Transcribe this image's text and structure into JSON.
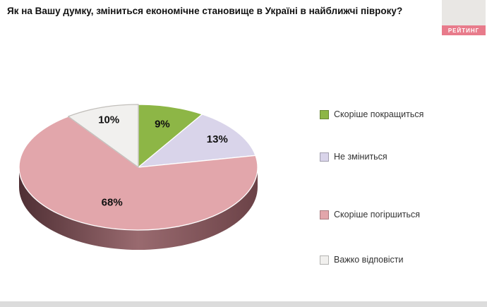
{
  "header": {
    "title": "Як на Вашу думку, зміниться економічне становище в Україні в найближчі півроку?",
    "logo_text": "РЕЙТИНГ"
  },
  "chart_data": {
    "type": "pie",
    "style": "3d",
    "title": "Як на Вашу думку, зміниться економічне становище в Україні в найближчі півроку?",
    "labels": [
      "Скоріше покращиться",
      "Не зміниться",
      "Скоріше погіршиться",
      "Важко відповісти"
    ],
    "values": [
      9,
      13,
      68,
      10
    ],
    "value_labels": [
      "9%",
      "13%",
      "68%",
      "10%"
    ],
    "colors": [
      "#8db646",
      "#d9d4ea",
      "#e2a6ab",
      "#f1f0ee"
    ],
    "strokes": [
      "#ffffff",
      "#ffffff",
      "#ffffff",
      "#c2bfbb"
    ],
    "side_colors": [
      "#4f2f34",
      "#996a6f",
      "#6b4247"
    ],
    "legend_position": "right",
    "start_angle_deg": -90,
    "direction": "clockwise"
  }
}
